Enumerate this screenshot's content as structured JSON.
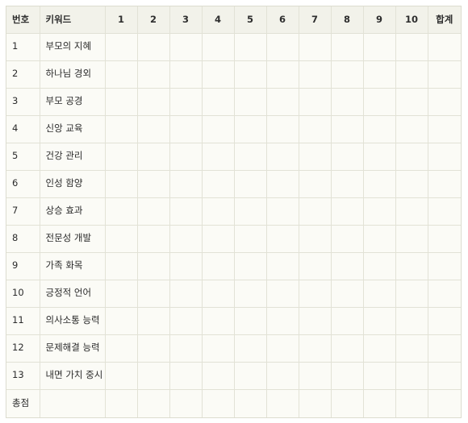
{
  "table": {
    "headers": {
      "number": "번호",
      "keyword": "키워드",
      "scores": [
        "1",
        "2",
        "3",
        "4",
        "5",
        "6",
        "7",
        "8",
        "9",
        "10"
      ],
      "sum": "합계"
    },
    "rows": [
      {
        "number": "1",
        "keyword": "부모의 지혜"
      },
      {
        "number": "2",
        "keyword": "하나님 경외"
      },
      {
        "number": "3",
        "keyword": "부모 공경"
      },
      {
        "number": "4",
        "keyword": "신앙 교육"
      },
      {
        "number": "5",
        "keyword": "건강 관리"
      },
      {
        "number": "6",
        "keyword": "인성 함양"
      },
      {
        "number": "7",
        "keyword": "상승 효과"
      },
      {
        "number": "8",
        "keyword": "전문성 개발"
      },
      {
        "number": "9",
        "keyword": "가족 화목"
      },
      {
        "number": "10",
        "keyword": "긍정적 언어"
      },
      {
        "number": "11",
        "keyword": "의사소통 능력"
      },
      {
        "number": "12",
        "keyword": "문제해결 능력"
      },
      {
        "number": "13",
        "keyword": "내면 가치 중시"
      }
    ],
    "total_label": "총점"
  }
}
